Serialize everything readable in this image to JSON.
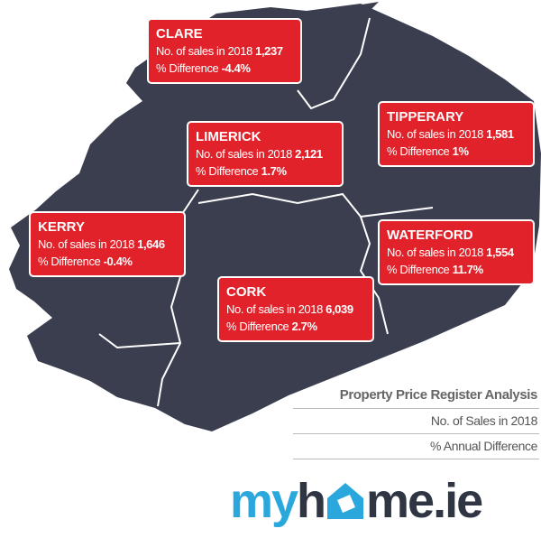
{
  "regions": [
    {
      "name": "CLARE",
      "sales_label": "No. of sales in 2018",
      "sales": "1,237",
      "diff_label": "% Difference",
      "diff": "-4.4%"
    },
    {
      "name": "LIMERICK",
      "sales_label": "No. of sales in 2018",
      "sales": "2,121",
      "diff_label": "% Difference",
      "diff": "1.7%"
    },
    {
      "name": "TIPPERARY",
      "sales_label": "No. of sales in 2018",
      "sales": "1,581",
      "diff_label": "% Difference",
      "diff": "1%"
    },
    {
      "name": "KERRY",
      "sales_label": "No. of sales in 2018",
      "sales": "1,646",
      "diff_label": "% Difference",
      "diff": "-0.4%"
    },
    {
      "name": "WATERFORD",
      "sales_label": "No. of sales in 2018",
      "sales": "1,554",
      "diff_label": "% Difference",
      "diff": "11.7%"
    },
    {
      "name": "CORK",
      "sales_label": "No. of sales in 2018",
      "sales": "6,039",
      "diff_label": "% Difference",
      "diff": "2.7%"
    }
  ],
  "legend": {
    "title": "Property Price Register Analysis",
    "line1": "No. of Sales in 2018",
    "line2": "% Annual Difference"
  },
  "logo": {
    "prefix": "my",
    "middle": "h",
    "suffix": "me.ie"
  }
}
